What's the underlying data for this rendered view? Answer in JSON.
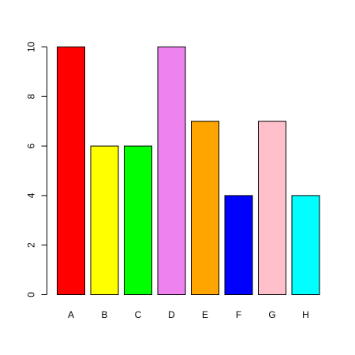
{
  "chart_data": {
    "type": "bar",
    "categories": [
      "A",
      "B",
      "C",
      "D",
      "E",
      "F",
      "G",
      "H"
    ],
    "values": [
      10,
      6,
      6,
      10,
      7,
      4,
      7,
      4
    ],
    "colors": [
      "#ff0000",
      "#ffff00",
      "#00ff00",
      "#ee82ee",
      "#ffa500",
      "#0000ff",
      "#ffc0cb",
      "#00ffff"
    ],
    "color_names": [
      "red",
      "yellow",
      "green",
      "violet",
      "orange",
      "blue",
      "pink",
      "cyan"
    ],
    "ylim": [
      0,
      10
    ],
    "yticks": [
      0,
      2,
      4,
      6,
      8,
      10
    ],
    "title": "",
    "xlabel": "",
    "ylabel": "",
    "grid": false,
    "legend": false,
    "bar_border_color": "#000000"
  }
}
